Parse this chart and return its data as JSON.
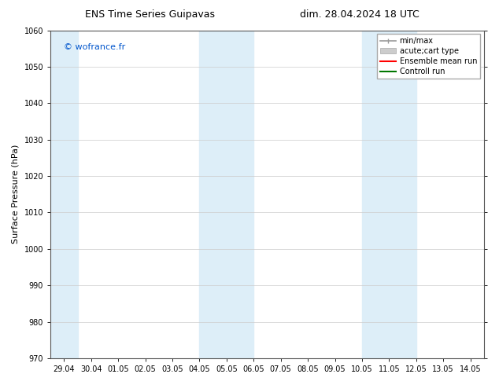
{
  "title_left": "ENS Time Series Guipavas",
  "title_right": "dim. 28.04.2024 18 UTC",
  "ylabel": "Surface Pressure (hPa)",
  "ylim": [
    970,
    1060
  ],
  "yticks": [
    970,
    980,
    990,
    1000,
    1010,
    1020,
    1030,
    1040,
    1050,
    1060
  ],
  "xlabels": [
    "29.04",
    "30.04",
    "01.05",
    "02.05",
    "03.05",
    "04.05",
    "05.05",
    "06.05",
    "07.05",
    "08.05",
    "09.05",
    "10.05",
    "11.05",
    "12.05",
    "13.05",
    "14.05"
  ],
  "shaded_regions": [
    {
      "xmin": -0.5,
      "xmax": 0.5,
      "color": "#ddeef8"
    },
    {
      "xmin": 5.0,
      "xmax": 7.0,
      "color": "#ddeef8"
    },
    {
      "xmin": 11.0,
      "xmax": 13.0,
      "color": "#ddeef8"
    }
  ],
  "watermark_text": "© wofrance.fr",
  "watermark_color": "#0055cc",
  "background_color": "#ffffff",
  "plot_bg_color": "#ffffff",
  "grid_color": "#cccccc",
  "legend_items": [
    {
      "label": "min/max",
      "color": "#999999"
    },
    {
      "label": "acute;cart type",
      "color": "#cccccc"
    },
    {
      "label": "Ensemble mean run",
      "color": "#ff0000"
    },
    {
      "label": "Controll run",
      "color": "#007700"
    }
  ],
  "title_fontsize": 9,
  "axis_fontsize": 8,
  "tick_fontsize": 7,
  "legend_fontsize": 7
}
